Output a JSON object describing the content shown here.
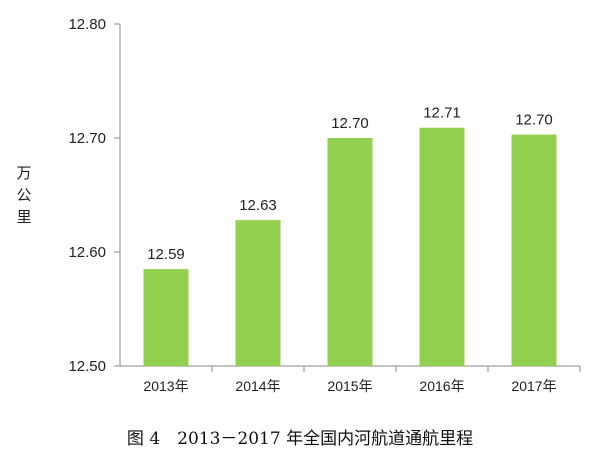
{
  "caption": "图 4　2013－2017 年全国内河航道通航里程",
  "chart_data": {
    "type": "bar",
    "categories": [
      "2013年",
      "2014年",
      "2015年",
      "2016年",
      "2017年"
    ],
    "values": [
      12.585,
      12.628,
      12.7,
      12.709,
      12.703
    ],
    "data_labels": [
      "12.59",
      "12.63",
      "12.70",
      "12.71",
      "12.70"
    ],
    "ylabel": "万公里",
    "ylim": [
      12.5,
      12.8
    ],
    "yticks": [
      "12.50",
      "12.60",
      "12.70",
      "12.80"
    ],
    "grid": false,
    "bar_color": "#92d050"
  }
}
